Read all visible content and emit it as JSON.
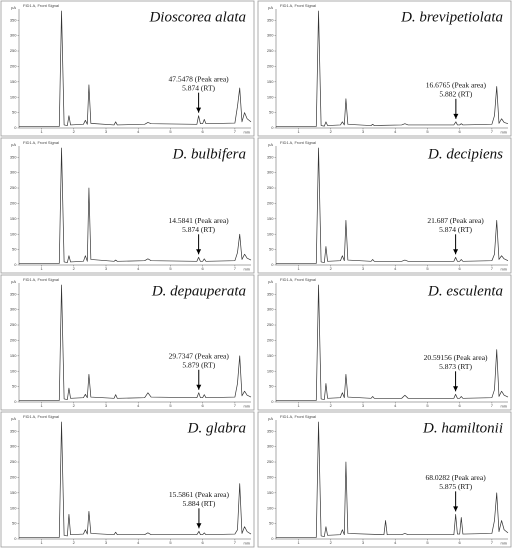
{
  "chart_data": [
    {
      "type": "line",
      "title": "Dioscorea alata",
      "header": "FID1 A, Front Signal",
      "y_unit": "pA",
      "x_unit": "min",
      "peak_area_label": "47.5478 (Peak area)",
      "rt_label": "5.874 (RT)",
      "x": [
        0.3,
        1.55,
        1.62,
        1.7,
        1.8,
        1.85,
        1.9,
        2.3,
        2.36,
        2.42,
        2.47,
        2.53,
        3.25,
        3.3,
        3.35,
        4.2,
        4.3,
        4.4,
        5.82,
        5.874,
        5.93,
        6.0,
        6.05,
        6.1,
        7.0,
        7.08,
        7.15,
        7.22,
        7.3,
        7.38,
        7.5
      ],
      "values": [
        5,
        5,
        380,
        10,
        8,
        40,
        10,
        12,
        25,
        12,
        140,
        15,
        10,
        20,
        10,
        12,
        18,
        14,
        12,
        40,
        14,
        14,
        28,
        14,
        16,
        70,
        130,
        20,
        50,
        30,
        20
      ],
      "xlim": [
        0.3,
        7.5
      ],
      "ylim": [
        0,
        380
      ],
      "xticks": [
        1,
        2,
        3,
        4,
        5,
        6,
        7
      ],
      "yticks": [
        0,
        50,
        100,
        150,
        200,
        250,
        300,
        350
      ],
      "color": "#333333"
    },
    {
      "type": "line",
      "title": "D. brevipetiolata",
      "header": "FID1 A, Front Signal",
      "y_unit": "pA",
      "x_unit": "min",
      "peak_area_label": "16.6765 (Peak area)",
      "rt_label": "5.882 (RT)",
      "x": [
        0.3,
        1.55,
        1.62,
        1.7,
        1.8,
        1.85,
        1.9,
        2.3,
        2.36,
        2.42,
        2.47,
        2.53,
        3.25,
        3.3,
        3.35,
        4.2,
        4.3,
        4.4,
        5.82,
        5.882,
        5.93,
        6.0,
        6.05,
        6.1,
        7.0,
        7.08,
        7.15,
        7.22,
        7.3,
        7.38,
        7.5
      ],
      "values": [
        5,
        5,
        380,
        8,
        6,
        20,
        8,
        10,
        20,
        10,
        95,
        12,
        8,
        12,
        8,
        10,
        14,
        10,
        10,
        20,
        10,
        10,
        14,
        10,
        12,
        40,
        135,
        15,
        30,
        18,
        14
      ],
      "xlim": [
        0.3,
        7.5
      ],
      "ylim": [
        0,
        380
      ],
      "xticks": [
        1,
        2,
        3,
        4,
        5,
        6,
        7
      ],
      "yticks": [
        0,
        50,
        100,
        150,
        200,
        250,
        300,
        350
      ],
      "color": "#333333"
    },
    {
      "type": "line",
      "title": "D. bulbifera",
      "header": "FID1 A, Front Signal",
      "y_unit": "pA",
      "x_unit": "min",
      "peak_area_label": "14.5841 (Peak area)",
      "rt_label": "5.874 (RT)",
      "x": [
        0.3,
        1.55,
        1.62,
        1.7,
        1.8,
        1.85,
        1.9,
        2.3,
        2.36,
        2.42,
        2.47,
        2.53,
        3.25,
        3.3,
        3.35,
        4.2,
        4.3,
        4.4,
        5.82,
        5.874,
        5.93,
        6.0,
        6.05,
        6.1,
        7.0,
        7.08,
        7.15,
        7.22,
        7.3,
        7.38,
        7.5
      ],
      "values": [
        5,
        5,
        380,
        10,
        8,
        30,
        10,
        12,
        30,
        12,
        250,
        18,
        12,
        16,
        12,
        14,
        20,
        14,
        12,
        25,
        12,
        12,
        20,
        12,
        14,
        40,
        100,
        18,
        35,
        22,
        16
      ],
      "xlim": [
        0.3,
        7.5
      ],
      "ylim": [
        0,
        380
      ],
      "xticks": [
        1,
        2,
        3,
        4,
        5,
        6,
        7
      ],
      "yticks": [
        0,
        50,
        100,
        150,
        200,
        250,
        300,
        350
      ],
      "color": "#333333"
    },
    {
      "type": "line",
      "title": "D. decipiens",
      "header": "FID1 A, Front Signal",
      "y_unit": "pA",
      "x_unit": "min",
      "peak_area_label": "21.687 (Peak area)",
      "rt_label": "5.874 (RT)",
      "x": [
        0.3,
        1.55,
        1.62,
        1.7,
        1.8,
        1.85,
        1.9,
        2.3,
        2.36,
        2.42,
        2.47,
        2.53,
        3.25,
        3.3,
        3.35,
        4.2,
        4.3,
        4.4,
        5.82,
        5.874,
        5.93,
        6.0,
        6.05,
        6.1,
        7.0,
        7.08,
        7.15,
        7.22,
        7.3,
        7.38,
        7.5
      ],
      "values": [
        5,
        5,
        380,
        10,
        8,
        60,
        12,
        14,
        30,
        14,
        145,
        16,
        12,
        18,
        12,
        12,
        16,
        12,
        12,
        25,
        12,
        12,
        18,
        12,
        14,
        35,
        145,
        18,
        30,
        20,
        14
      ],
      "xlim": [
        0.3,
        7.5
      ],
      "ylim": [
        0,
        380
      ],
      "xticks": [
        1,
        2,
        3,
        4,
        5,
        6,
        7
      ],
      "yticks": [
        0,
        50,
        100,
        150,
        200,
        250,
        300,
        350
      ],
      "color": "#333333"
    },
    {
      "type": "line",
      "title": "D. depauperata",
      "header": "FID1 A, Front Signal",
      "y_unit": "pA",
      "x_unit": "min",
      "peak_area_label": "29.7347 (Peak area)",
      "rt_label": "5.879 (RT)",
      "x": [
        0.3,
        1.55,
        1.62,
        1.7,
        1.8,
        1.85,
        1.9,
        2.3,
        2.36,
        2.42,
        2.47,
        2.53,
        3.25,
        3.3,
        3.35,
        4.2,
        4.3,
        4.4,
        5.82,
        5.879,
        5.93,
        6.0,
        6.05,
        6.1,
        7.0,
        7.08,
        7.15,
        7.22,
        7.3,
        7.38,
        7.5
      ],
      "values": [
        5,
        5,
        380,
        10,
        8,
        45,
        12,
        14,
        25,
        14,
        90,
        16,
        12,
        24,
        12,
        14,
        30,
        16,
        14,
        30,
        14,
        14,
        24,
        14,
        16,
        60,
        150,
        20,
        35,
        22,
        16
      ],
      "xlim": [
        0.3,
        7.5
      ],
      "ylim": [
        0,
        380
      ],
      "xticks": [
        1,
        2,
        3,
        4,
        5,
        6,
        7
      ],
      "yticks": [
        0,
        50,
        100,
        150,
        200,
        250,
        300,
        350
      ],
      "color": "#333333"
    },
    {
      "type": "line",
      "title": "D. esculenta",
      "header": "FID1 A, Front Signal",
      "y_unit": "pA",
      "x_unit": "min",
      "peak_area_label": "20.59156 (Peak area)",
      "rt_label": "5.873 (RT)",
      "x": [
        0.3,
        1.55,
        1.62,
        1.7,
        1.8,
        1.85,
        1.9,
        2.3,
        2.36,
        2.42,
        2.47,
        2.53,
        3.25,
        3.3,
        3.35,
        4.2,
        4.3,
        4.4,
        5.82,
        5.873,
        5.93,
        6.0,
        6.05,
        6.1,
        7.0,
        7.08,
        7.15,
        7.22,
        7.3,
        7.38,
        7.5
      ],
      "values": [
        5,
        5,
        380,
        10,
        8,
        60,
        12,
        14,
        30,
        14,
        90,
        16,
        12,
        18,
        12,
        12,
        22,
        12,
        12,
        25,
        12,
        12,
        18,
        12,
        14,
        40,
        170,
        18,
        35,
        22,
        16
      ],
      "xlim": [
        0.3,
        7.5
      ],
      "ylim": [
        0,
        380
      ],
      "xticks": [
        1,
        2,
        3,
        4,
        5,
        6,
        7
      ],
      "yticks": [
        0,
        50,
        100,
        150,
        200,
        250,
        300,
        350
      ],
      "color": "#333333"
    },
    {
      "type": "line",
      "title": "D. glabra",
      "header": "FID1 A, Front Signal",
      "y_unit": "pA",
      "x_unit": "min",
      "peak_area_label": "15.5861 (Peak area)",
      "rt_label": "5.884 (RT)",
      "x": [
        0.3,
        1.55,
        1.62,
        1.7,
        1.8,
        1.85,
        1.9,
        2.3,
        2.36,
        2.42,
        2.47,
        2.53,
        3.25,
        3.3,
        3.35,
        4.2,
        4.3,
        4.4,
        5.82,
        5.884,
        5.93,
        6.0,
        6.05,
        6.1,
        7.0,
        7.08,
        7.15,
        7.22,
        7.3,
        7.38,
        7.5
      ],
      "values": [
        5,
        5,
        380,
        12,
        10,
        80,
        14,
        16,
        30,
        16,
        90,
        18,
        14,
        22,
        14,
        14,
        20,
        14,
        14,
        25,
        14,
        14,
        20,
        14,
        16,
        30,
        180,
        18,
        40,
        24,
        16
      ],
      "xlim": [
        0.3,
        7.5
      ],
      "ylim": [
        0,
        380
      ],
      "xticks": [
        1,
        2,
        3,
        4,
        5,
        6,
        7
      ],
      "yticks": [
        0,
        50,
        100,
        150,
        200,
        250,
        300,
        350
      ],
      "color": "#333333"
    },
    {
      "type": "line",
      "title": "D. hamiltonii",
      "header": "FID1 A, Front Signal",
      "y_unit": "pA",
      "x_unit": "min",
      "peak_area_label": "68.0282 (Peak area)",
      "rt_label": "5.875 (RT)",
      "x": [
        0.3,
        1.55,
        1.62,
        1.7,
        1.8,
        1.85,
        1.9,
        2.3,
        2.36,
        2.42,
        2.47,
        2.53,
        3.65,
        3.7,
        3.75,
        4.2,
        4.3,
        4.4,
        5.82,
        5.875,
        5.93,
        6.0,
        6.05,
        6.1,
        7.0,
        7.08,
        7.15,
        7.22,
        7.3,
        7.38,
        7.5
      ],
      "values": [
        5,
        5,
        380,
        10,
        8,
        40,
        12,
        14,
        30,
        14,
        250,
        18,
        14,
        60,
        14,
        14,
        18,
        14,
        14,
        80,
        16,
        16,
        70,
        16,
        18,
        60,
        150,
        24,
        60,
        30,
        20
      ],
      "xlim": [
        0.3,
        7.5
      ],
      "ylim": [
        0,
        380
      ],
      "xticks": [
        1,
        2,
        3,
        4,
        5,
        6,
        7
      ],
      "yticks": [
        0,
        50,
        100,
        150,
        200,
        250,
        300,
        350
      ],
      "color": "#333333"
    }
  ]
}
